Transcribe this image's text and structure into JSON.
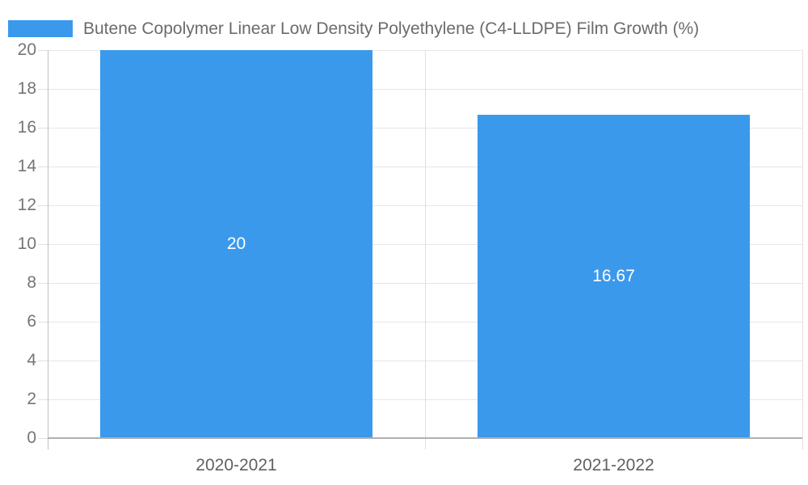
{
  "chart_data": {
    "type": "bar",
    "title": "",
    "xlabel": "",
    "ylabel": "",
    "categories": [
      "2020-2021",
      "2021-2022"
    ],
    "series": [
      {
        "name": "Butene Copolymer Linear Low Density Polyethylene (C4-LLDPE) Film Growth (%)",
        "values": [
          20,
          16.67
        ],
        "data_labels": [
          "20",
          "16.67"
        ],
        "color": "#3B99EC"
      }
    ],
    "ylim": [
      0,
      20
    ],
    "y_ticks": [
      0,
      2,
      4,
      6,
      8,
      10,
      12,
      14,
      16,
      18,
      20
    ],
    "grid": "on",
    "legend_position": "top-left"
  },
  "legend": {
    "label": "Butene Copolymer Linear Low Density Polyethylene (C4-LLDPE) Film Growth (%)",
    "swatch_color": "#3B99EC"
  },
  "colors": {
    "bar": "#3B99EC",
    "value_label": "#FFFFFF",
    "axis_tick_labels": "#757575",
    "category_labels": "#616161",
    "legend_text": "#6B6B6B",
    "gridline": "#E6E6E6",
    "axis_line": "#B0B0B0"
  }
}
